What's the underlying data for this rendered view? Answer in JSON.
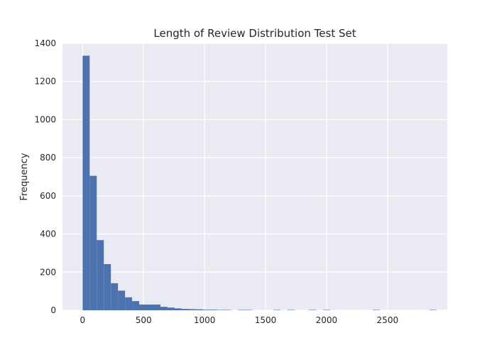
{
  "chart_data": {
    "type": "bar",
    "subtype": "histogram",
    "title": "Length of Review Distribution Test Set",
    "xlabel": "",
    "ylabel": "Frequency",
    "xlim": [
      -165,
      2990
    ],
    "ylim": [
      0,
      1400
    ],
    "xticks": [
      0,
      500,
      1000,
      1500,
      2000,
      2500
    ],
    "yticks": [
      0,
      200,
      400,
      600,
      800,
      1000,
      1200,
      1400
    ],
    "grid": true,
    "background": "#EAEAF2",
    "bar_color": "#4C72B0",
    "bin_width": 58,
    "bins": [
      {
        "x0": 0,
        "count": 1335
      },
      {
        "x0": 58,
        "count": 705
      },
      {
        "x0": 116,
        "count": 368
      },
      {
        "x0": 174,
        "count": 242
      },
      {
        "x0": 232,
        "count": 142
      },
      {
        "x0": 290,
        "count": 103
      },
      {
        "x0": 348,
        "count": 68
      },
      {
        "x0": 406,
        "count": 48
      },
      {
        "x0": 464,
        "count": 30
      },
      {
        "x0": 522,
        "count": 30
      },
      {
        "x0": 580,
        "count": 30
      },
      {
        "x0": 638,
        "count": 18
      },
      {
        "x0": 696,
        "count": 14
      },
      {
        "x0": 754,
        "count": 10
      },
      {
        "x0": 812,
        "count": 7
      },
      {
        "x0": 870,
        "count": 6
      },
      {
        "x0": 928,
        "count": 5
      },
      {
        "x0": 986,
        "count": 3
      },
      {
        "x0": 1044,
        "count": 3
      },
      {
        "x0": 1102,
        "count": 2
      },
      {
        "x0": 1160,
        "count": 2
      },
      {
        "x0": 1276,
        "count": 2
      },
      {
        "x0": 1334,
        "count": 2
      },
      {
        "x0": 1566,
        "count": 2
      },
      {
        "x0": 1682,
        "count": 2
      },
      {
        "x0": 1856,
        "count": 2
      },
      {
        "x0": 1972,
        "count": 2
      },
      {
        "x0": 2378,
        "count": 2
      },
      {
        "x0": 2842,
        "count": 2
      }
    ]
  }
}
